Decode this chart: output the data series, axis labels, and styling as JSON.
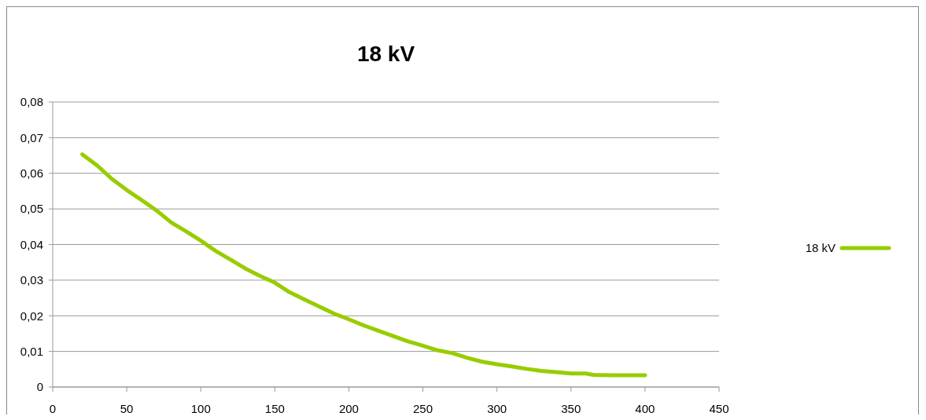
{
  "chart_data": {
    "type": "line",
    "title": "18 kV",
    "x": [
      20,
      30,
      40,
      50,
      60,
      70,
      80,
      90,
      100,
      110,
      120,
      130,
      140,
      150,
      160,
      170,
      180,
      190,
      200,
      210,
      220,
      230,
      240,
      250,
      260,
      270,
      280,
      290,
      300,
      310,
      320,
      330,
      340,
      350,
      360,
      365,
      380,
      400
    ],
    "series": [
      {
        "name": "18 kV",
        "color": "#99cc00",
        "values": [
          0.0653,
          0.0622,
          0.0584,
          0.0553,
          0.0525,
          0.0496,
          0.0462,
          0.0437,
          0.0411,
          0.0382,
          0.0358,
          0.0333,
          0.0312,
          0.0293,
          0.0266,
          0.0246,
          0.0226,
          0.0206,
          0.019,
          0.0173,
          0.0158,
          0.0143,
          0.0128,
          0.0116,
          0.0103,
          0.0095,
          0.0082,
          0.0071,
          0.0064,
          0.0058,
          0.0051,
          0.0045,
          0.0042,
          0.0038,
          0.0038,
          0.0034,
          0.0033,
          0.0033
        ]
      }
    ],
    "xlim": [
      0,
      450
    ],
    "xticks": [
      0,
      50,
      100,
      150,
      200,
      250,
      300,
      350,
      400,
      450
    ],
    "ylim": [
      0,
      0.08
    ],
    "yticks": [
      {
        "value": 0,
        "label": "0"
      },
      {
        "value": 0.01,
        "label": "0,01"
      },
      {
        "value": 0.02,
        "label": "0,02"
      },
      {
        "value": 0.03,
        "label": "0,03"
      },
      {
        "value": 0.04,
        "label": "0,04"
      },
      {
        "value": 0.05,
        "label": "0,05"
      },
      {
        "value": 0.06,
        "label": "0,06"
      },
      {
        "value": 0.07,
        "label": "0,07"
      },
      {
        "value": 0.08,
        "label": "0,08"
      }
    ],
    "grid": "y",
    "legend": "right",
    "marker": "none",
    "line_style": "solid"
  }
}
